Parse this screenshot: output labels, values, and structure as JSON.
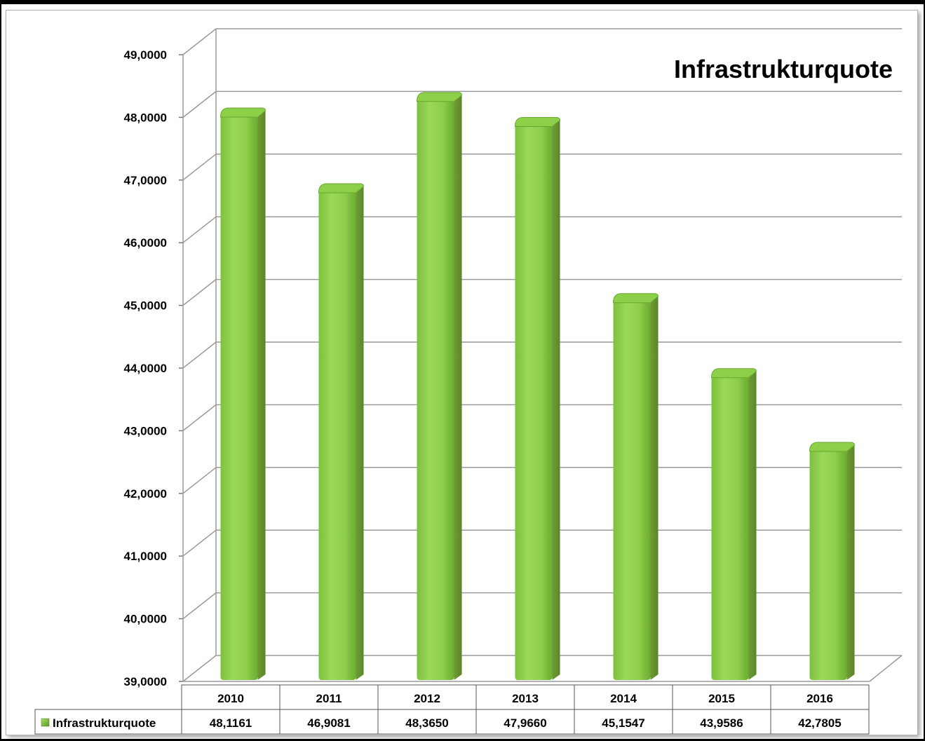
{
  "chart_data": {
    "type": "bar",
    "title": "Infrastrukturquote",
    "categories": [
      "2010",
      "2011",
      "2012",
      "2013",
      "2014",
      "2015",
      "2016"
    ],
    "series": [
      {
        "name": "Infrastrukturquote",
        "values": [
          48.1161,
          46.9081,
          48.365,
          47.966,
          45.1547,
          43.9586,
          42.7805
        ],
        "value_labels": [
          "48,1161",
          "46,9081",
          "48,3650",
          "47,9660",
          "45,1547",
          "43,9586",
          "42,7805"
        ]
      }
    ],
    "ylim": [
      39,
      49
    ],
    "y_ticks": [
      39,
      40,
      41,
      42,
      43,
      44,
      45,
      46,
      47,
      48,
      49
    ],
    "y_tick_labels": [
      "39,0000",
      "40,0000",
      "41,0000",
      "42,0000",
      "43,0000",
      "44,0000",
      "45,0000",
      "46,0000",
      "47,0000",
      "48,0000",
      "49,0000"
    ],
    "grid": true,
    "legend": "data-table-left",
    "bar_color": "#8fce4c",
    "bar_color_dark": "#6a9e2f"
  }
}
